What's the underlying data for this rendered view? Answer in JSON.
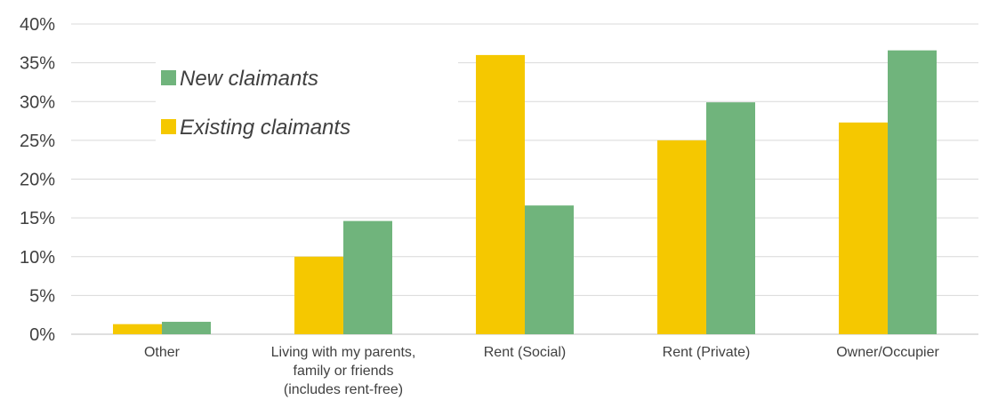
{
  "chart_data": {
    "type": "bar",
    "title": "",
    "xlabel": "",
    "ylabel": "",
    "ylim": [
      0,
      40
    ],
    "y_ticks": [
      "0%",
      "5%",
      "10%",
      "15%",
      "20%",
      "25%",
      "30%",
      "35%",
      "40%"
    ],
    "grid": true,
    "legend_position": "top-left",
    "categories": [
      [
        "Other"
      ],
      [
        "Living with my parents,",
        "family or friends",
        "(includes rent-free)"
      ],
      [
        "Rent (Social)"
      ],
      [
        "Rent (Private)"
      ],
      [
        "Owner/Occupier"
      ]
    ],
    "series": [
      {
        "name": "Existing claimants",
        "color": "#f5c800",
        "values": [
          1.3,
          10.0,
          36.0,
          25.0,
          27.3
        ]
      },
      {
        "name": "New claimants",
        "color": "#70b47c",
        "values": [
          1.6,
          14.6,
          16.6,
          29.9,
          36.6
        ]
      }
    ],
    "legend_order": [
      1,
      0
    ]
  }
}
